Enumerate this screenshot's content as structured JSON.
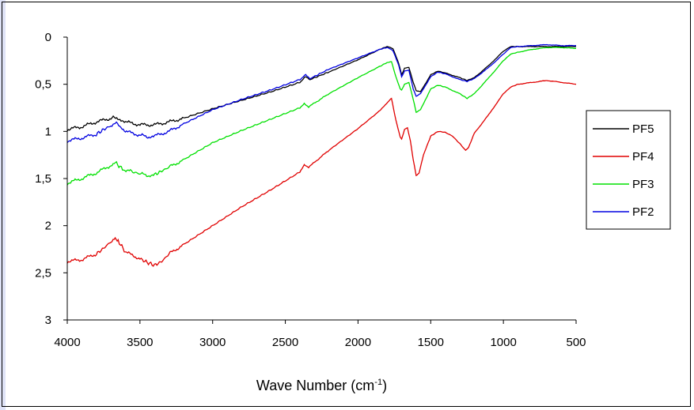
{
  "chart_data": {
    "type": "line",
    "title": "",
    "xlabel": "Wave Number (cm",
    "xlabel_sup": "-1",
    "xlabel_close": ")",
    "ylabel": "",
    "xlim": [
      4000,
      500
    ],
    "ylim": [
      0,
      3
    ],
    "x_reversed": true,
    "y_reversed": true,
    "xticks": [
      4000,
      3500,
      3000,
      2500,
      2000,
      1500,
      1000,
      500
    ],
    "xtick_labels": [
      "4000",
      "3500",
      "3000",
      "2500",
      "2000",
      "1500",
      "1000",
      "500"
    ],
    "yticks": [
      0,
      0.5,
      1,
      1.5,
      2,
      2.5,
      3
    ],
    "ytick_labels": [
      "0",
      "0,5",
      "1",
      "1,5",
      "2",
      "2,5",
      "3"
    ],
    "grid": false,
    "legend_position": "right",
    "series": [
      {
        "name": "PF5",
        "color": "#000000",
        "x": [
          4000,
          3900,
          3800,
          3700,
          3660,
          3600,
          3500,
          3400,
          3300,
          3200,
          3000,
          2800,
          2600,
          2400,
          2360,
          2330,
          2200,
          2000,
          1850,
          1800,
          1760,
          1720,
          1700,
          1680,
          1650,
          1620,
          1600,
          1570,
          1500,
          1450,
          1400,
          1300,
          1250,
          1200,
          1100,
          1000,
          950,
          900,
          800,
          700,
          600,
          500
        ],
        "y": [
          0.98,
          0.95,
          0.9,
          0.86,
          0.85,
          0.9,
          0.93,
          0.93,
          0.9,
          0.86,
          0.76,
          0.67,
          0.58,
          0.48,
          0.42,
          0.45,
          0.37,
          0.24,
          0.13,
          0.1,
          0.12,
          0.28,
          0.4,
          0.33,
          0.32,
          0.48,
          0.57,
          0.58,
          0.4,
          0.36,
          0.38,
          0.43,
          0.46,
          0.43,
          0.3,
          0.15,
          0.1,
          0.1,
          0.1,
          0.1,
          0.1,
          0.1
        ]
      },
      {
        "name": "PF4",
        "color": "#e00000",
        "x": [
          4000,
          3900,
          3800,
          3750,
          3700,
          3670,
          3650,
          3600,
          3500,
          3450,
          3400,
          3350,
          3300,
          3200,
          3000,
          2800,
          2600,
          2400,
          2370,
          2340,
          2200,
          2000,
          1850,
          1790,
          1770,
          1740,
          1710,
          1700,
          1680,
          1660,
          1640,
          1620,
          1600,
          1580,
          1550,
          1500,
          1450,
          1400,
          1350,
          1300,
          1260,
          1240,
          1200,
          1100,
          1000,
          950,
          900,
          800,
          700,
          600,
          500
        ],
        "y": [
          2.38,
          2.36,
          2.3,
          2.24,
          2.17,
          2.13,
          2.16,
          2.28,
          2.35,
          2.39,
          2.42,
          2.38,
          2.3,
          2.2,
          2.0,
          1.8,
          1.62,
          1.43,
          1.35,
          1.38,
          1.2,
          0.97,
          0.78,
          0.68,
          0.65,
          0.88,
          1.06,
          1.08,
          0.98,
          0.96,
          1.1,
          1.3,
          1.47,
          1.44,
          1.25,
          1.05,
          1.0,
          1.01,
          1.05,
          1.13,
          1.2,
          1.17,
          1.02,
          0.82,
          0.6,
          0.53,
          0.5,
          0.48,
          0.46,
          0.48,
          0.5
        ]
      },
      {
        "name": "PF3",
        "color": "#00e000",
        "x": [
          4000,
          3900,
          3800,
          3700,
          3670,
          3620,
          3550,
          3500,
          3430,
          3400,
          3350,
          3300,
          3200,
          3000,
          2800,
          2600,
          2400,
          2370,
          2340,
          2200,
          2000,
          1850,
          1800,
          1770,
          1740,
          1710,
          1700,
          1680,
          1650,
          1620,
          1600,
          1570,
          1500,
          1450,
          1400,
          1300,
          1250,
          1200,
          1100,
          1000,
          950,
          900,
          800,
          700,
          600,
          500
        ],
        "y": [
          1.55,
          1.5,
          1.44,
          1.36,
          1.33,
          1.4,
          1.43,
          1.45,
          1.47,
          1.46,
          1.42,
          1.38,
          1.3,
          1.12,
          0.99,
          0.87,
          0.75,
          0.7,
          0.74,
          0.6,
          0.43,
          0.31,
          0.27,
          0.26,
          0.42,
          0.55,
          0.56,
          0.5,
          0.48,
          0.66,
          0.8,
          0.77,
          0.55,
          0.51,
          0.53,
          0.6,
          0.65,
          0.6,
          0.43,
          0.25,
          0.18,
          0.16,
          0.13,
          0.11,
          0.11,
          0.12
        ]
      },
      {
        "name": "PF2",
        "color": "#0000e0",
        "x": [
          4000,
          3900,
          3800,
          3750,
          3700,
          3670,
          3630,
          3600,
          3500,
          3430,
          3400,
          3300,
          3200,
          3000,
          2800,
          2600,
          2400,
          2360,
          2330,
          2200,
          2000,
          1850,
          1800,
          1760,
          1720,
          1700,
          1680,
          1650,
          1620,
          1600,
          1570,
          1500,
          1450,
          1400,
          1300,
          1250,
          1200,
          1100,
          1000,
          950,
          900,
          800,
          700,
          600,
          500
        ],
        "y": [
          1.1,
          1.07,
          1.03,
          0.98,
          0.94,
          0.91,
          0.95,
          1.0,
          1.04,
          1.06,
          1.05,
          1.0,
          0.92,
          0.77,
          0.66,
          0.56,
          0.45,
          0.4,
          0.44,
          0.34,
          0.22,
          0.13,
          0.11,
          0.14,
          0.3,
          0.42,
          0.36,
          0.35,
          0.55,
          0.63,
          0.6,
          0.42,
          0.37,
          0.39,
          0.45,
          0.47,
          0.44,
          0.32,
          0.18,
          0.11,
          0.1,
          0.09,
          0.08,
          0.09,
          0.09
        ]
      }
    ]
  }
}
